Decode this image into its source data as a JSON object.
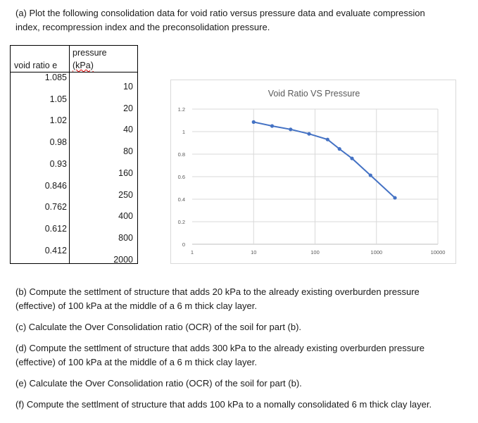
{
  "question_a": [
    "(a) Plot the following consolidation data for void ratio versus pressure data and evaluate compression",
    "index, recompression index and the preconsolidation pressure."
  ],
  "table": {
    "header_void": "void ratio e",
    "header_pressure_1": "pressure",
    "header_pressure_2": "(kPa)",
    "void_ratio": [
      "1.085",
      "1.05",
      "1.02",
      "0.98",
      "0.93",
      "0.846",
      "0.762",
      "0.612",
      "0.412"
    ],
    "pressure": [
      "10",
      "20",
      "40",
      "80",
      "160",
      "250",
      "400",
      "800",
      "2000"
    ]
  },
  "chart_data": {
    "type": "line",
    "title": "Void Ratio VS Pressure",
    "x_scale": "log",
    "xlim": [
      1,
      10000
    ],
    "ylim": [
      0,
      1.2
    ],
    "x_ticks": [
      "1",
      "10",
      "100",
      "1000",
      "10000"
    ],
    "y_ticks": [
      "0",
      "0.2",
      "0.4",
      "0.6",
      "0.8",
      "1",
      "1.2"
    ],
    "grid": true,
    "color": "#4472c4",
    "x": [
      10,
      20,
      40,
      80,
      160,
      250,
      400,
      800,
      2000
    ],
    "y": [
      1.085,
      1.05,
      1.02,
      0.98,
      0.93,
      0.846,
      0.762,
      0.612,
      0.412
    ]
  },
  "questions": [
    "(b) Compute the settlment of structure that adds 20 kPa to the already existing overburden pressure",
    "(effective) of 100 kPa at the middle of a 6 m thick clay layer.",
    "(c) Calculate the Over Consolidation ratio (OCR) of the soil for part (b).",
    "(d) Compute the settlment of structure that adds 300 kPa to the already existing overburden pressure",
    "(effective) of 100 kPa at the middle of a 6 m thick clay layer.",
    "(e) Calculate the Over Consolidation ratio (OCR) of the soil for part (b).",
    "(f) Compute the settlment of structure that adds 100 kPa to a nomally consolidated 6 m thick clay layer."
  ]
}
